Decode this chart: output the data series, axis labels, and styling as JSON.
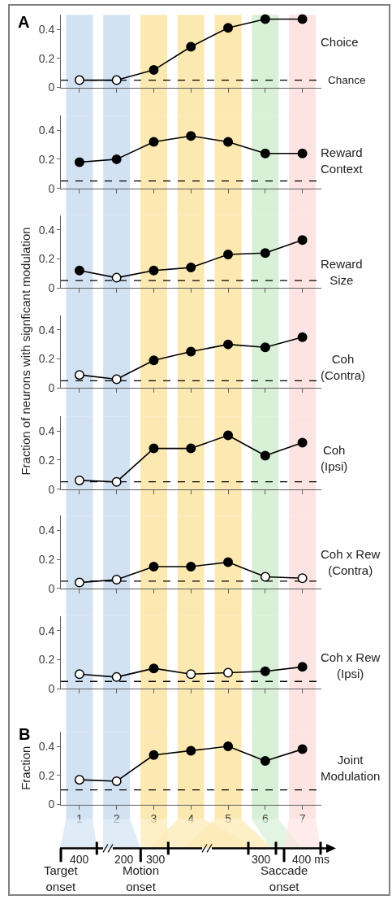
{
  "chart_data": [
    {
      "type": "line",
      "title": "Choice",
      "x": [
        1,
        2,
        3,
        4,
        5,
        6,
        7
      ],
      "xlim": [
        0.5,
        7.5
      ],
      "xticks": [
        1,
        2,
        3,
        4,
        5,
        6,
        7
      ],
      "ylim": [
        0,
        0.5
      ],
      "yticks": [
        0,
        0.2,
        0.4
      ],
      "tick_labels": "y",
      "marker": "circle",
      "line_style": "solid",
      "series": [
        {
          "color": "#000000",
          "colors": [
            "#ffffff",
            "#ffffff",
            "#000000",
            "#000000",
            "#000000",
            "#000000",
            "#000000"
          ],
          "values": [
            0.05,
            0.05,
            0.12,
            0.28,
            0.41,
            0.47,
            0.47
          ]
        }
      ],
      "ref_lines": [
        {
          "axis": "y",
          "value": 0.05,
          "label": "Chance",
          "line_style": "dashed",
          "color": "#000000"
        }
      ],
      "bands": [
        {
          "axis": "x",
          "from": 0.64,
          "to": 1.36,
          "color": "#d2e2f3"
        },
        {
          "axis": "x",
          "from": 1.64,
          "to": 2.36,
          "color": "#d2e2f3"
        },
        {
          "axis": "x",
          "from": 2.64,
          "to": 3.36,
          "color": "#fce9b2"
        },
        {
          "axis": "x",
          "from": 3.64,
          "to": 4.36,
          "color": "#fce9b2"
        },
        {
          "axis": "x",
          "from": 4.64,
          "to": 5.36,
          "color": "#fce9b2"
        },
        {
          "axis": "x",
          "from": 5.64,
          "to": 6.36,
          "color": "#d8f0d5"
        },
        {
          "axis": "x",
          "from": 6.64,
          "to": 7.36,
          "color": "#fde4e2"
        }
      ],
      "annotations": [
        "A"
      ]
    },
    {
      "type": "line",
      "title": "Reward Context",
      "x": [
        1,
        2,
        3,
        4,
        5,
        6,
        7
      ],
      "xlim": [
        0.5,
        7.5
      ],
      "xticks": [
        1,
        2,
        3,
        4,
        5,
        6,
        7
      ],
      "ylim": [
        0,
        0.5
      ],
      "yticks": [
        0,
        0.2,
        0.4
      ],
      "tick_labels": "y",
      "marker": "circle",
      "line_style": "solid",
      "series": [
        {
          "color": "#000000",
          "colors": [
            "#000000",
            "#000000",
            "#000000",
            "#000000",
            "#000000",
            "#000000",
            "#000000"
          ],
          "values": [
            0.18,
            0.2,
            0.32,
            0.36,
            0.32,
            0.24,
            0.24
          ]
        }
      ],
      "ref_lines": [
        {
          "axis": "y",
          "value": 0.05,
          "line_style": "dashed",
          "color": "#000000"
        }
      ],
      "bands": [
        {
          "axis": "x",
          "from": 0.64,
          "to": 1.36,
          "color": "#d2e2f3"
        },
        {
          "axis": "x",
          "from": 1.64,
          "to": 2.36,
          "color": "#d2e2f3"
        },
        {
          "axis": "x",
          "from": 2.64,
          "to": 3.36,
          "color": "#fce9b2"
        },
        {
          "axis": "x",
          "from": 3.64,
          "to": 4.36,
          "color": "#fce9b2"
        },
        {
          "axis": "x",
          "from": 4.64,
          "to": 5.36,
          "color": "#fce9b2"
        },
        {
          "axis": "x",
          "from": 5.64,
          "to": 6.36,
          "color": "#d8f0d5"
        },
        {
          "axis": "x",
          "from": 6.64,
          "to": 7.36,
          "color": "#fde4e2"
        }
      ]
    },
    {
      "type": "line",
      "title": "Reward Size",
      "x": [
        1,
        2,
        3,
        4,
        5,
        6,
        7
      ],
      "xlim": [
        0.5,
        7.5
      ],
      "xticks": [
        1,
        2,
        3,
        4,
        5,
        6,
        7
      ],
      "ylim": [
        0,
        0.5
      ],
      "yticks": [
        0,
        0.2,
        0.4
      ],
      "tick_labels": "y",
      "marker": "circle",
      "line_style": "solid",
      "series": [
        {
          "color": "#000000",
          "colors": [
            "#000000",
            "#ffffff",
            "#000000",
            "#000000",
            "#000000",
            "#000000",
            "#000000"
          ],
          "values": [
            0.12,
            0.07,
            0.12,
            0.14,
            0.23,
            0.24,
            0.33
          ]
        }
      ],
      "ref_lines": [
        {
          "axis": "y",
          "value": 0.05,
          "line_style": "dashed",
          "color": "#000000"
        }
      ],
      "bands": [
        {
          "axis": "x",
          "from": 0.64,
          "to": 1.36,
          "color": "#d2e2f3"
        },
        {
          "axis": "x",
          "from": 1.64,
          "to": 2.36,
          "color": "#d2e2f3"
        },
        {
          "axis": "x",
          "from": 2.64,
          "to": 3.36,
          "color": "#fce9b2"
        },
        {
          "axis": "x",
          "from": 3.64,
          "to": 4.36,
          "color": "#fce9b2"
        },
        {
          "axis": "x",
          "from": 4.64,
          "to": 5.36,
          "color": "#fce9b2"
        },
        {
          "axis": "x",
          "from": 5.64,
          "to": 6.36,
          "color": "#d8f0d5"
        },
        {
          "axis": "x",
          "from": 6.64,
          "to": 7.36,
          "color": "#fde4e2"
        }
      ]
    },
    {
      "type": "line",
      "title": "Coh (Contra)",
      "ylabel": "Fraction of neurons with signficant modulation",
      "x": [
        1,
        2,
        3,
        4,
        5,
        6,
        7
      ],
      "xlim": [
        0.5,
        7.5
      ],
      "xticks": [
        1,
        2,
        3,
        4,
        5,
        6,
        7
      ],
      "ylim": [
        0,
        0.5
      ],
      "yticks": [
        0,
        0.2,
        0.4
      ],
      "tick_labels": "y",
      "marker": "circle",
      "line_style": "solid",
      "series": [
        {
          "color": "#000000",
          "colors": [
            "#ffffff",
            "#ffffff",
            "#000000",
            "#000000",
            "#000000",
            "#000000",
            "#000000"
          ],
          "values": [
            0.09,
            0.06,
            0.19,
            0.25,
            0.3,
            0.28,
            0.35
          ]
        }
      ],
      "ref_lines": [
        {
          "axis": "y",
          "value": 0.05,
          "line_style": "dashed",
          "color": "#000000"
        }
      ],
      "bands": [
        {
          "axis": "x",
          "from": 0.64,
          "to": 1.36,
          "color": "#d2e2f3"
        },
        {
          "axis": "x",
          "from": 1.64,
          "to": 2.36,
          "color": "#d2e2f3"
        },
        {
          "axis": "x",
          "from": 2.64,
          "to": 3.36,
          "color": "#fce9b2"
        },
        {
          "axis": "x",
          "from": 3.64,
          "to": 4.36,
          "color": "#fce9b2"
        },
        {
          "axis": "x",
          "from": 4.64,
          "to": 5.36,
          "color": "#fce9b2"
        },
        {
          "axis": "x",
          "from": 5.64,
          "to": 6.36,
          "color": "#d8f0d5"
        },
        {
          "axis": "x",
          "from": 6.64,
          "to": 7.36,
          "color": "#fde4e2"
        }
      ]
    },
    {
      "type": "line",
      "title": "Coh (Ipsi)",
      "x": [
        1,
        2,
        3,
        4,
        5,
        6,
        7
      ],
      "xlim": [
        0.5,
        7.5
      ],
      "xticks": [
        1,
        2,
        3,
        4,
        5,
        6,
        7
      ],
      "ylim": [
        0,
        0.5
      ],
      "yticks": [
        0,
        0.2,
        0.4
      ],
      "tick_labels": "y",
      "marker": "circle",
      "line_style": "solid",
      "series": [
        {
          "color": "#000000",
          "colors": [
            "#ffffff",
            "#ffffff",
            "#000000",
            "#000000",
            "#000000",
            "#000000",
            "#000000"
          ],
          "values": [
            0.06,
            0.05,
            0.28,
            0.28,
            0.37,
            0.23,
            0.32
          ]
        }
      ],
      "ref_lines": [
        {
          "axis": "y",
          "value": 0.05,
          "line_style": "dashed",
          "color": "#000000"
        }
      ],
      "bands": [
        {
          "axis": "x",
          "from": 0.64,
          "to": 1.36,
          "color": "#d2e2f3"
        },
        {
          "axis": "x",
          "from": 1.64,
          "to": 2.36,
          "color": "#d2e2f3"
        },
        {
          "axis": "x",
          "from": 2.64,
          "to": 3.36,
          "color": "#fce9b2"
        },
        {
          "axis": "x",
          "from": 3.64,
          "to": 4.36,
          "color": "#fce9b2"
        },
        {
          "axis": "x",
          "from": 4.64,
          "to": 5.36,
          "color": "#fce9b2"
        },
        {
          "axis": "x",
          "from": 5.64,
          "to": 6.36,
          "color": "#d8f0d5"
        },
        {
          "axis": "x",
          "from": 6.64,
          "to": 7.36,
          "color": "#fde4e2"
        }
      ]
    },
    {
      "type": "line",
      "title": "Coh x Rew (Contra)",
      "x": [
        1,
        2,
        3,
        4,
        5,
        6,
        7
      ],
      "xlim": [
        0.5,
        7.5
      ],
      "xticks": [
        1,
        2,
        3,
        4,
        5,
        6,
        7
      ],
      "ylim": [
        0,
        0.5
      ],
      "yticks": [
        0,
        0.2,
        0.4
      ],
      "tick_labels": "y",
      "marker": "circle",
      "line_style": "solid",
      "series": [
        {
          "color": "#000000",
          "colors": [
            "#ffffff",
            "#ffffff",
            "#000000",
            "#000000",
            "#000000",
            "#ffffff",
            "#ffffff"
          ],
          "values": [
            0.04,
            0.06,
            0.15,
            0.15,
            0.18,
            0.08,
            0.07
          ]
        }
      ],
      "ref_lines": [
        {
          "axis": "y",
          "value": 0.05,
          "line_style": "dashed",
          "color": "#000000"
        }
      ],
      "bands": [
        {
          "axis": "x",
          "from": 0.64,
          "to": 1.36,
          "color": "#d2e2f3"
        },
        {
          "axis": "x",
          "from": 1.64,
          "to": 2.36,
          "color": "#d2e2f3"
        },
        {
          "axis": "x",
          "from": 2.64,
          "to": 3.36,
          "color": "#fce9b2"
        },
        {
          "axis": "x",
          "from": 3.64,
          "to": 4.36,
          "color": "#fce9b2"
        },
        {
          "axis": "x",
          "from": 4.64,
          "to": 5.36,
          "color": "#fce9b2"
        },
        {
          "axis": "x",
          "from": 5.64,
          "to": 6.36,
          "color": "#d8f0d5"
        },
        {
          "axis": "x",
          "from": 6.64,
          "to": 7.36,
          "color": "#fde4e2"
        }
      ]
    },
    {
      "type": "line",
      "title": "Coh x Rew (Ipsi)",
      "x": [
        1,
        2,
        3,
        4,
        5,
        6,
        7
      ],
      "xlim": [
        0.5,
        7.5
      ],
      "xticks": [
        1,
        2,
        3,
        4,
        5,
        6,
        7
      ],
      "ylim": [
        0,
        0.5
      ],
      "yticks": [
        0,
        0.2,
        0.4
      ],
      "tick_labels": "y",
      "marker": "circle",
      "line_style": "solid",
      "series": [
        {
          "color": "#000000",
          "colors": [
            "#ffffff",
            "#ffffff",
            "#000000",
            "#ffffff",
            "#ffffff",
            "#000000",
            "#000000"
          ],
          "values": [
            0.1,
            0.08,
            0.14,
            0.1,
            0.11,
            0.12,
            0.15
          ]
        }
      ],
      "ref_lines": [
        {
          "axis": "y",
          "value": 0.05,
          "line_style": "dashed",
          "color": "#000000"
        }
      ],
      "bands": [
        {
          "axis": "x",
          "from": 0.64,
          "to": 1.36,
          "color": "#d2e2f3"
        },
        {
          "axis": "x",
          "from": 1.64,
          "to": 2.36,
          "color": "#d2e2f3"
        },
        {
          "axis": "x",
          "from": 2.64,
          "to": 3.36,
          "color": "#fce9b2"
        },
        {
          "axis": "x",
          "from": 3.64,
          "to": 4.36,
          "color": "#fce9b2"
        },
        {
          "axis": "x",
          "from": 4.64,
          "to": 5.36,
          "color": "#fce9b2"
        },
        {
          "axis": "x",
          "from": 5.64,
          "to": 6.36,
          "color": "#d8f0d5"
        },
        {
          "axis": "x",
          "from": 6.64,
          "to": 7.36,
          "color": "#fde4e2"
        }
      ]
    },
    {
      "type": "line",
      "title": "Joint Modulation",
      "ylabel": "Fraction",
      "x": [
        1,
        2,
        3,
        4,
        5,
        6,
        7
      ],
      "xlim": [
        0.5,
        7.5
      ],
      "xticks": [
        1,
        2,
        3,
        4,
        5,
        6,
        7
      ],
      "ylim": [
        0,
        0.5
      ],
      "yticks": [
        0,
        0.2,
        0.4
      ],
      "marker": "circle",
      "line_style": "solid",
      "series": [
        {
          "color": "#000000",
          "colors": [
            "#ffffff",
            "#ffffff",
            "#000000",
            "#000000",
            "#000000",
            "#000000",
            "#000000"
          ],
          "values": [
            0.17,
            0.16,
            0.34,
            0.37,
            0.4,
            0.3,
            0.38
          ]
        }
      ],
      "ref_lines": [
        {
          "axis": "y",
          "value": 0.1,
          "line_style": "dashed",
          "color": "#000000"
        }
      ],
      "bands": [
        {
          "axis": "x",
          "from": 0.64,
          "to": 1.36,
          "color": "#d2e2f3"
        },
        {
          "axis": "x",
          "from": 1.64,
          "to": 2.36,
          "color": "#d2e2f3"
        },
        {
          "axis": "x",
          "from": 2.64,
          "to": 3.36,
          "color": "#fce9b2"
        },
        {
          "axis": "x",
          "from": 3.64,
          "to": 4.36,
          "color": "#fce9b2"
        },
        {
          "axis": "x",
          "from": 4.64,
          "to": 5.36,
          "color": "#fce9b2"
        },
        {
          "axis": "x",
          "from": 5.64,
          "to": 6.36,
          "color": "#d8f0d5"
        },
        {
          "axis": "x",
          "from": 6.64,
          "to": 7.36,
          "color": "#fde4e2"
        }
      ],
      "annotations": [
        "B",
        "400",
        "200",
        "300",
        "300",
        "400 ms",
        "Target onset",
        "Motion onset",
        "Saccade onset"
      ]
    }
  ]
}
